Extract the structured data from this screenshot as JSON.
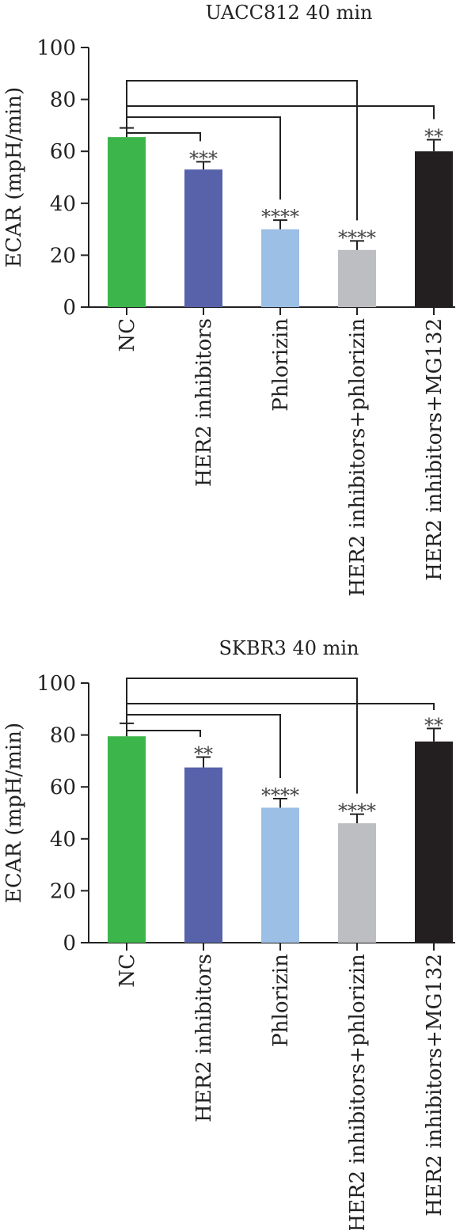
{
  "colors": {
    "NC": "#3cb54a",
    "HER2 inhibitors": "#5762ab",
    "Phlorizin": "#9cbfe6",
    "HER2 inhibitors+phlorizin": "#bdbec1",
    "HER2 inhibitors+MG132": "#231f20",
    "axis": "#222222"
  },
  "chart_data": [
    {
      "type": "bar",
      "title": "UACC812 40 min",
      "ylabel": "ECAR (mpH/min)",
      "xlabel": "",
      "ylim": [
        0,
        100
      ],
      "yticks": [
        0,
        20,
        40,
        60,
        80,
        100
      ],
      "categories": [
        "NC",
        "HER2 inhibitors",
        "Phlorizin",
        "HER2 inhibitors+phlorizin",
        "HER2 inhibitors+MG132"
      ],
      "values": [
        65.5,
        53,
        30,
        22,
        60
      ],
      "errors": [
        3.5,
        3,
        3.5,
        3.5,
        4.5
      ],
      "significance": [
        "",
        "***",
        "****",
        "****",
        "**"
      ],
      "comparisons": [
        {
          "from": "NC",
          "to": "HER2 inhibitors"
        },
        {
          "from": "NC",
          "to": "Phlorizin"
        },
        {
          "from": "NC",
          "to": "HER2 inhibitors+phlorizin"
        },
        {
          "from": "NC",
          "to": "HER2 inhibitors+MG132"
        }
      ]
    },
    {
      "type": "bar",
      "title": "SKBR3 40 min",
      "ylabel": "ECAR (mpH/min)",
      "xlabel": "",
      "ylim": [
        0,
        100
      ],
      "yticks": [
        0,
        20,
        40,
        60,
        80,
        100
      ],
      "categories": [
        "NC",
        "HER2 inhibitors",
        "Phlorizin",
        "HER2 inhibitors+phlorizin",
        "HER2 inhibitors+MG132"
      ],
      "values": [
        79.5,
        67.5,
        52,
        46,
        77.5
      ],
      "errors": [
        5,
        4,
        3.5,
        3.5,
        5
      ],
      "significance": [
        "",
        "**",
        "****",
        "****",
        "**"
      ],
      "comparisons": [
        {
          "from": "NC",
          "to": "HER2 inhibitors"
        },
        {
          "from": "NC",
          "to": "Phlorizin"
        },
        {
          "from": "NC",
          "to": "HER2 inhibitors+phlorizin"
        },
        {
          "from": "NC",
          "to": "HER2 inhibitors+MG132"
        }
      ]
    }
  ]
}
